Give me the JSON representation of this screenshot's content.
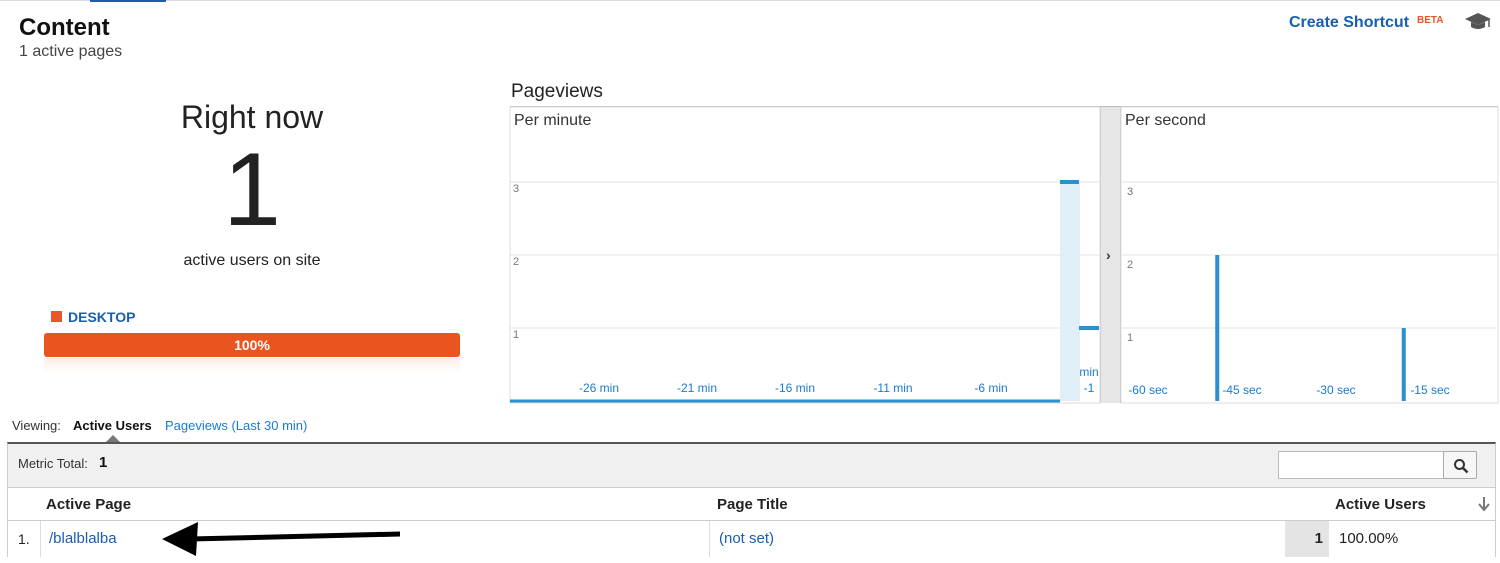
{
  "header": {
    "title": "Content",
    "subtitle": "1 active pages",
    "create_shortcut": "Create Shortcut",
    "beta": "BETA"
  },
  "right_now": {
    "label": "Right now",
    "count": "1",
    "caption": "active users on site",
    "device_label": "DESKTOP",
    "device_percent": "100%",
    "device_fraction": 1.0,
    "device_color": "#e9541f"
  },
  "pageviews": {
    "title": "Pageviews",
    "per_minute_label": "Per minute",
    "per_second_label": "Per second"
  },
  "chart_data": [
    {
      "type": "bar",
      "title": "Per minute",
      "y_ticks": [
        "1",
        "2",
        "3"
      ],
      "ylim": [
        0,
        3
      ],
      "x_tick_labels": [
        "-26 min",
        "-21 min",
        "-16 min",
        "-11 min",
        "-6 min",
        "-1 min"
      ],
      "x": [
        -1
      ],
      "values": [
        3
      ],
      "secondary_values": [
        1
      ],
      "color": "#2b8fd0",
      "grid": true
    },
    {
      "type": "bar",
      "title": "Per second",
      "y_ticks": [
        "1",
        "2",
        "3"
      ],
      "ylim": [
        0,
        3
      ],
      "x_tick_labels": [
        "-60 sec",
        "-45 sec",
        "-30 sec",
        "-15 sec"
      ],
      "x": [
        -45,
        -15
      ],
      "values": [
        2,
        1
      ],
      "color": "#2b8fd0",
      "grid": true
    }
  ],
  "viewing": {
    "label": "Viewing:",
    "active_tab": "Active Users",
    "other_tab": "Pageviews (Last 30 min)"
  },
  "table": {
    "metric_total_label": "Metric Total:",
    "metric_total_value": "1",
    "search_placeholder": "",
    "columns": [
      "Active Page",
      "Page Title",
      "Active Users"
    ],
    "rows": [
      {
        "index": "1.",
        "page": "/blalblalba",
        "title": "(not set)",
        "users": "1",
        "percent": "100.00%"
      }
    ]
  }
}
